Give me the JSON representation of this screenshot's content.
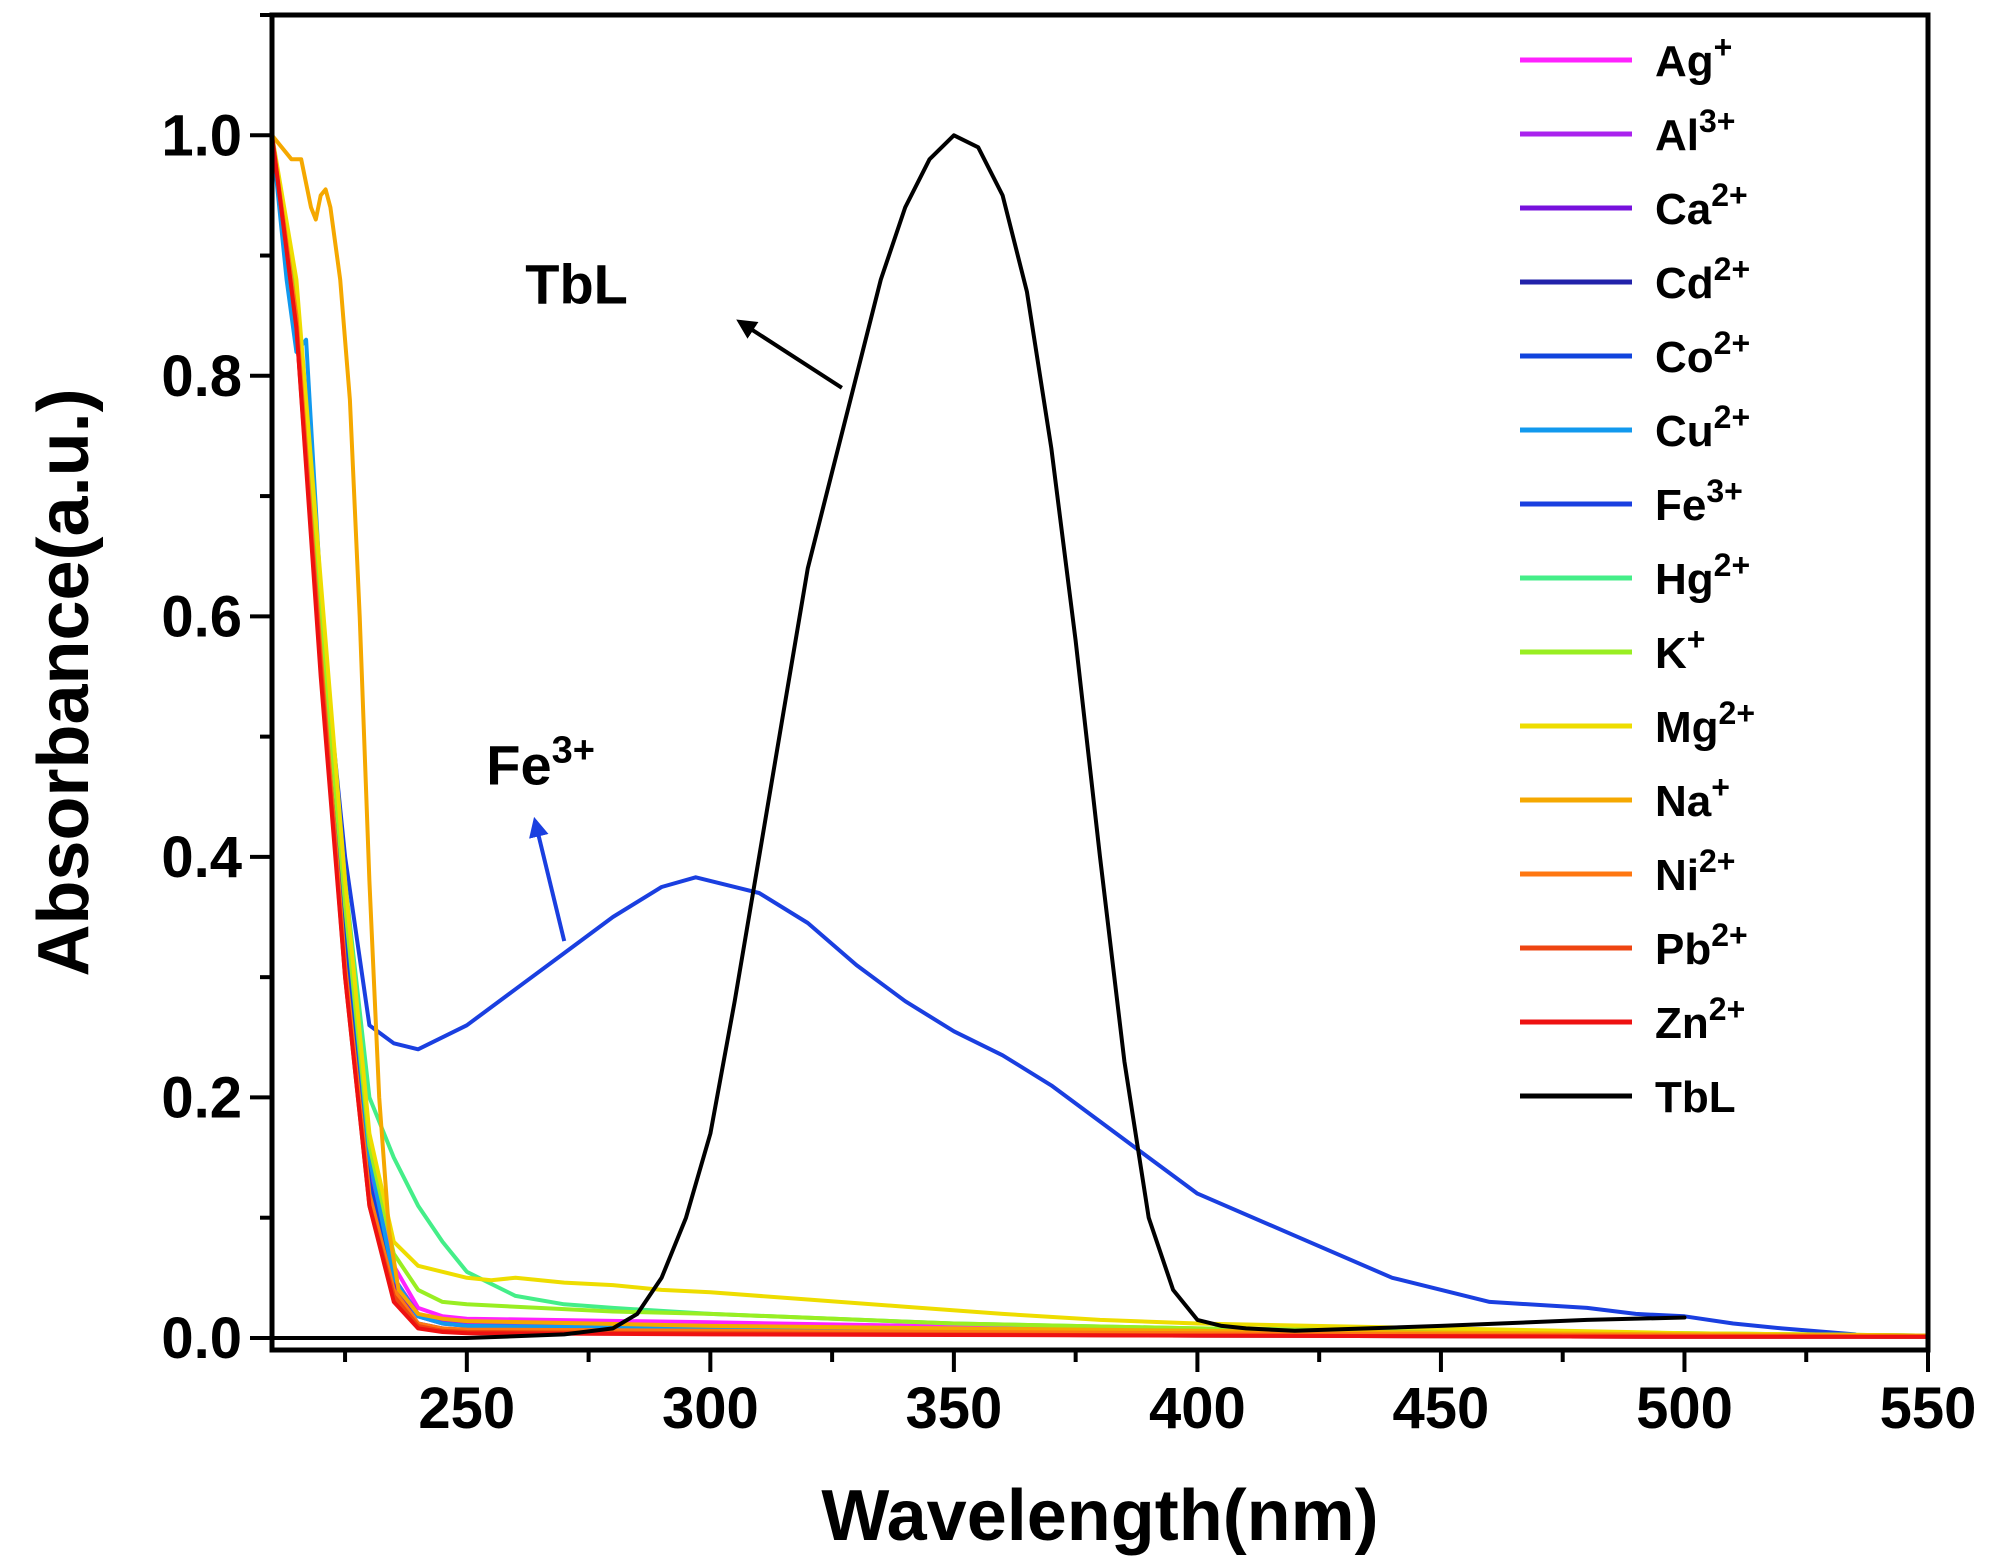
{
  "chart_data": {
    "type": "line",
    "title": "",
    "xlabel": "Wavelength(nm)",
    "ylabel": "Absorbance(a.u.)",
    "xlim": [
      210,
      550
    ],
    "ylim": [
      -0.01,
      1.1
    ],
    "xticks": [
      250,
      300,
      350,
      400,
      450,
      500,
      550
    ],
    "xtick_labels": [
      "250",
      "300",
      "350",
      "400",
      "450",
      "500",
      "550"
    ],
    "yticks": [
      0.0,
      0.2,
      0.4,
      0.6,
      0.8,
      1.0
    ],
    "ytick_labels": [
      "0.0",
      "0.2",
      "0.4",
      "0.6",
      "0.8",
      "1.0"
    ],
    "grid": false,
    "legend_position": "top-right",
    "series": [
      {
        "name": "Ag",
        "charge": "+",
        "color": "#FF22FF",
        "x": [
          210,
          215,
          220,
          225,
          230,
          235,
          240,
          245,
          250,
          300,
          400,
          500,
          550
        ],
        "y": [
          1.0,
          0.86,
          0.6,
          0.35,
          0.15,
          0.06,
          0.025,
          0.018,
          0.016,
          0.013,
          0.006,
          0.003,
          0.002
        ]
      },
      {
        "name": "Al",
        "charge": "3+",
        "color": "#AA22EE",
        "x": [
          210,
          215,
          220,
          225,
          230,
          235,
          240,
          245,
          250,
          300,
          400,
          500,
          550
        ],
        "y": [
          1.0,
          0.85,
          0.58,
          0.33,
          0.14,
          0.05,
          0.02,
          0.015,
          0.013,
          0.01,
          0.005,
          0.003,
          0.002
        ]
      },
      {
        "name": "Ca",
        "charge": "2+",
        "color": "#7711DD",
        "x": [
          210,
          215,
          220,
          225,
          230,
          235,
          240,
          245,
          250,
          300,
          400,
          500,
          550
        ],
        "y": [
          1.0,
          0.84,
          0.57,
          0.32,
          0.13,
          0.045,
          0.018,
          0.012,
          0.01,
          0.008,
          0.004,
          0.002,
          0.001
        ]
      },
      {
        "name": "Cd",
        "charge": "2+",
        "color": "#2222AA",
        "x": [
          210,
          215,
          220,
          225,
          230,
          235,
          240,
          245,
          250,
          300,
          400,
          500,
          550
        ],
        "y": [
          1.0,
          0.85,
          0.58,
          0.32,
          0.12,
          0.035,
          0.01,
          0.006,
          0.005,
          0.004,
          0.002,
          0.001,
          0.001
        ]
      },
      {
        "name": "Co",
        "charge": "2+",
        "color": "#1144DD",
        "x": [
          210,
          215,
          220,
          225,
          230,
          235,
          240,
          245,
          250,
          300,
          400,
          500,
          550
        ],
        "y": [
          1.0,
          0.85,
          0.58,
          0.33,
          0.13,
          0.04,
          0.012,
          0.008,
          0.006,
          0.005,
          0.003,
          0.002,
          0.001
        ]
      },
      {
        "name": "Cu",
        "charge": "2+",
        "color": "#1199EE",
        "x": [
          210,
          213,
          215,
          217,
          220,
          225,
          230,
          235,
          240,
          245,
          250,
          300,
          400,
          500,
          550
        ],
        "y": [
          1.0,
          0.88,
          0.82,
          0.83,
          0.62,
          0.36,
          0.15,
          0.05,
          0.018,
          0.012,
          0.01,
          0.008,
          0.004,
          0.002,
          0.001
        ]
      },
      {
        "name": "Fe",
        "charge": "3+",
        "color": "#1A3FE0",
        "x": [
          210,
          215,
          220,
          225,
          230,
          235,
          240,
          250,
          260,
          270,
          280,
          290,
          297,
          310,
          320,
          330,
          340,
          350,
          360,
          370,
          380,
          390,
          400,
          420,
          440,
          460,
          480,
          490,
          500,
          510,
          520,
          535
        ],
        "y": [
          1.0,
          0.85,
          0.6,
          0.4,
          0.26,
          0.245,
          0.24,
          0.26,
          0.29,
          0.32,
          0.35,
          0.375,
          0.383,
          0.37,
          0.345,
          0.31,
          0.28,
          0.255,
          0.235,
          0.21,
          0.18,
          0.15,
          0.12,
          0.085,
          0.05,
          0.03,
          0.025,
          0.02,
          0.018,
          0.012,
          0.008,
          0.003
        ]
      },
      {
        "name": "Hg",
        "charge": "2+",
        "color": "#44EE88",
        "x": [
          210,
          215,
          220,
          225,
          230,
          235,
          240,
          245,
          250,
          260,
          270,
          280,
          300,
          350,
          400,
          500,
          550
        ],
        "y": [
          1.0,
          0.86,
          0.62,
          0.38,
          0.2,
          0.15,
          0.11,
          0.08,
          0.055,
          0.035,
          0.028,
          0.025,
          0.02,
          0.012,
          0.008,
          0.004,
          0.002
        ]
      },
      {
        "name": "K",
        "charge": "+",
        "color": "#99EE22",
        "x": [
          210,
          215,
          220,
          225,
          230,
          235,
          240,
          245,
          250,
          260,
          280,
          300,
          350,
          400,
          500,
          550
        ],
        "y": [
          1.0,
          0.86,
          0.6,
          0.36,
          0.16,
          0.07,
          0.04,
          0.03,
          0.028,
          0.026,
          0.022,
          0.02,
          0.012,
          0.008,
          0.004,
          0.002
        ]
      },
      {
        "name": "Mg",
        "charge": "2+",
        "color": "#EEDD00",
        "x": [
          210,
          215,
          220,
          225,
          230,
          235,
          240,
          245,
          250,
          255,
          260,
          270,
          280,
          290,
          300,
          320,
          340,
          360,
          380,
          400,
          450,
          500,
          550
        ],
        "y": [
          1.0,
          0.88,
          0.63,
          0.38,
          0.17,
          0.08,
          0.06,
          0.055,
          0.05,
          0.048,
          0.05,
          0.046,
          0.044,
          0.04,
          0.038,
          0.032,
          0.026,
          0.02,
          0.015,
          0.012,
          0.008,
          0.004,
          0.002
        ]
      },
      {
        "name": "Na",
        "charge": "+",
        "color": "#F5A800",
        "x": [
          210,
          212,
          214,
          216,
          218,
          219,
          220,
          221,
          222,
          224,
          226,
          228,
          230,
          232,
          234,
          236,
          240,
          245,
          250,
          300,
          400,
          500,
          550
        ],
        "y": [
          1.0,
          0.99,
          0.98,
          0.98,
          0.94,
          0.93,
          0.95,
          0.955,
          0.94,
          0.88,
          0.78,
          0.6,
          0.38,
          0.2,
          0.09,
          0.04,
          0.02,
          0.016,
          0.014,
          0.01,
          0.006,
          0.003,
          0.002
        ]
      },
      {
        "name": "Ni",
        "charge": "2+",
        "color": "#FF7711",
        "x": [
          210,
          215,
          220,
          225,
          230,
          235,
          240,
          245,
          250,
          300,
          400,
          500,
          550
        ],
        "y": [
          1.0,
          0.85,
          0.57,
          0.31,
          0.12,
          0.04,
          0.012,
          0.008,
          0.007,
          0.006,
          0.004,
          0.002,
          0.001
        ]
      },
      {
        "name": "Pb",
        "charge": "2+",
        "color": "#EE4411",
        "x": [
          210,
          215,
          220,
          225,
          230,
          235,
          240,
          245,
          250,
          300,
          400,
          500,
          550
        ],
        "y": [
          1.0,
          0.84,
          0.56,
          0.3,
          0.11,
          0.035,
          0.01,
          0.006,
          0.005,
          0.004,
          0.002,
          0.001,
          0.001
        ]
      },
      {
        "name": "Zn",
        "charge": "2+",
        "color": "#EE1111",
        "x": [
          210,
          215,
          220,
          225,
          230,
          235,
          240,
          245,
          250,
          300,
          400,
          500,
          550
        ],
        "y": [
          1.0,
          0.84,
          0.55,
          0.3,
          0.11,
          0.03,
          0.008,
          0.005,
          0.004,
          0.003,
          0.002,
          0.001,
          0.001
        ]
      },
      {
        "name": "TbL",
        "charge": "",
        "color": "#000000",
        "x": [
          210,
          250,
          270,
          280,
          285,
          290,
          295,
          300,
          305,
          310,
          315,
          320,
          325,
          330,
          335,
          340,
          345,
          350,
          355,
          360,
          365,
          370,
          375,
          380,
          385,
          390,
          395,
          400,
          405,
          410,
          420,
          450,
          480,
          500
        ],
        "y": [
          0.0,
          0.0,
          0.003,
          0.008,
          0.02,
          0.05,
          0.1,
          0.17,
          0.28,
          0.4,
          0.52,
          0.64,
          0.72,
          0.8,
          0.88,
          0.94,
          0.98,
          1.0,
          0.99,
          0.95,
          0.87,
          0.74,
          0.58,
          0.4,
          0.23,
          0.1,
          0.04,
          0.015,
          0.01,
          0.008,
          0.006,
          0.01,
          0.015,
          0.017
        ]
      }
    ],
    "annotations": [
      {
        "label": "TbL",
        "sup": "",
        "color": "#000000",
        "text_at": [
          262,
          0.86
        ],
        "arrow_from": [
          327,
          0.79
        ],
        "arrow_to": [
          306,
          0.845
        ]
      },
      {
        "label": "Fe",
        "sup": "3+",
        "color": "#1A3FE0",
        "text_at": [
          254,
          0.46
        ],
        "arrow_from": [
          270,
          0.33
        ],
        "arrow_to": [
          264,
          0.43
        ]
      }
    ]
  }
}
